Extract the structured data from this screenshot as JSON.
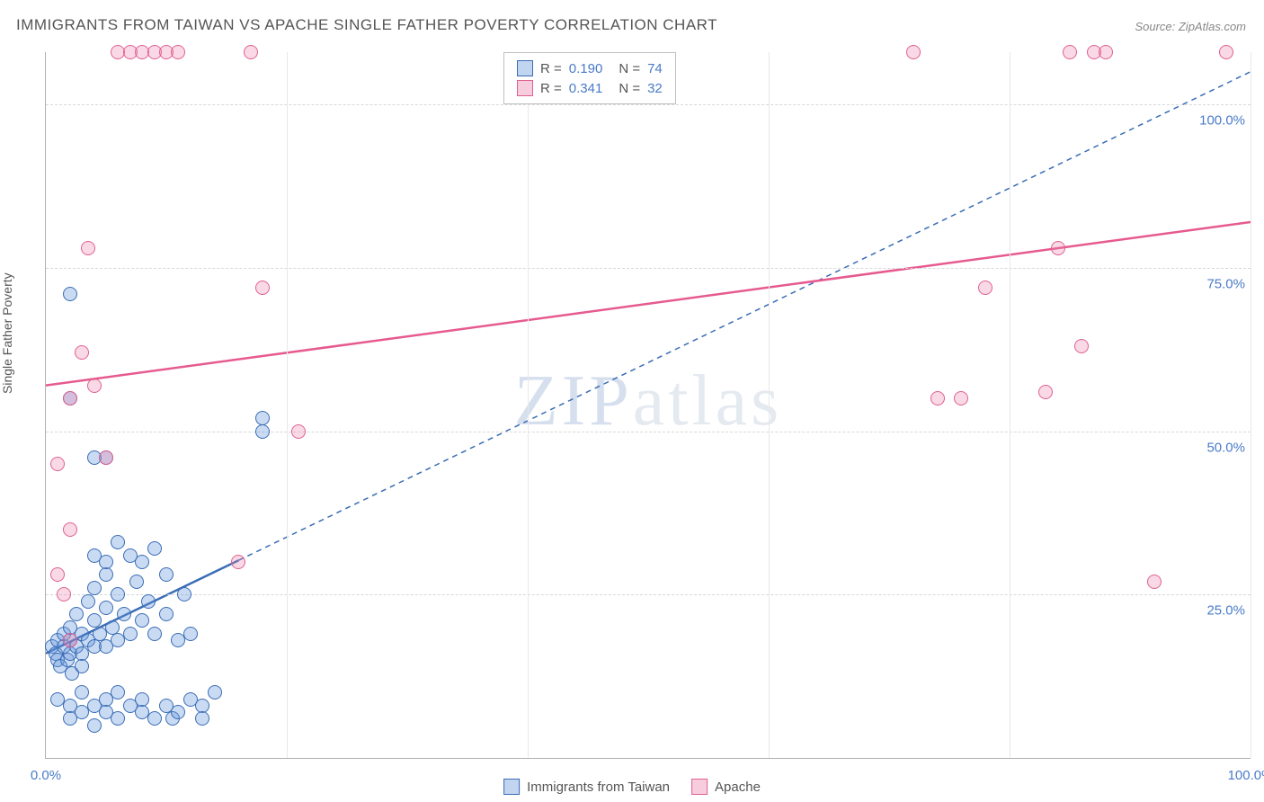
{
  "title": "IMMIGRANTS FROM TAIWAN VS APACHE SINGLE FATHER POVERTY CORRELATION CHART",
  "source": "Source: ZipAtlas.com",
  "y_axis_label": "Single Father Poverty",
  "watermark_bold": "ZIP",
  "watermark_light": "atlas",
  "chart": {
    "type": "scatter",
    "xlim": [
      0,
      100
    ],
    "ylim": [
      0,
      108
    ],
    "x_ticks": [
      0,
      100
    ],
    "x_tick_labels": [
      "0.0%",
      "100.0%"
    ],
    "x_grid": [
      20,
      40,
      60,
      80,
      100
    ],
    "y_ticks": [
      25,
      50,
      75,
      100
    ],
    "y_tick_labels": [
      "25.0%",
      "50.0%",
      "75.0%",
      "100.0%"
    ],
    "background_color": "#ffffff",
    "grid_color": "#d8d8d8",
    "marker_size": 14,
    "series": [
      {
        "name": "Immigrants from Taiwan",
        "color_fill": "rgba(100,150,220,0.35)",
        "color_stroke": "#3a6db5",
        "class": "blue",
        "R": "0.190",
        "N": "74",
        "trend": {
          "x1": 0,
          "y1": 16,
          "x2": 100,
          "y2": 105,
          "solid_until_x": 16,
          "stroke": "#3a6db5",
          "dash": "6,5"
        },
        "points": [
          [
            0.5,
            17
          ],
          [
            0.8,
            16
          ],
          [
            1,
            15
          ],
          [
            1,
            18
          ],
          [
            1.2,
            14
          ],
          [
            1.5,
            17
          ],
          [
            1.5,
            19
          ],
          [
            1.8,
            15
          ],
          [
            2,
            18
          ],
          [
            2,
            16
          ],
          [
            2,
            20
          ],
          [
            2.2,
            13
          ],
          [
            2.5,
            17
          ],
          [
            2.5,
            22
          ],
          [
            3,
            16
          ],
          [
            3,
            19
          ],
          [
            3,
            14
          ],
          [
            3.5,
            18
          ],
          [
            3.5,
            24
          ],
          [
            4,
            17
          ],
          [
            4,
            21
          ],
          [
            4,
            26
          ],
          [
            4.5,
            19
          ],
          [
            5,
            17
          ],
          [
            5,
            23
          ],
          [
            5,
            28
          ],
          [
            5.5,
            20
          ],
          [
            6,
            18
          ],
          [
            6,
            25
          ],
          [
            6.5,
            22
          ],
          [
            7,
            19
          ],
          [
            7,
            31
          ],
          [
            7.5,
            27
          ],
          [
            8,
            21
          ],
          [
            8,
            30
          ],
          [
            8.5,
            24
          ],
          [
            9,
            19
          ],
          [
            9,
            32
          ],
          [
            10,
            22
          ],
          [
            10,
            28
          ],
          [
            10.5,
            6
          ],
          [
            11,
            18
          ],
          [
            11,
            7
          ],
          [
            11.5,
            25
          ],
          [
            12,
            9
          ],
          [
            12,
            19
          ],
          [
            13,
            8
          ],
          [
            13,
            6
          ],
          [
            14,
            10
          ],
          [
            1,
            9
          ],
          [
            2,
            8
          ],
          [
            2,
            6
          ],
          [
            3,
            7
          ],
          [
            3,
            10
          ],
          [
            4,
            8
          ],
          [
            4,
            5
          ],
          [
            5,
            9
          ],
          [
            5,
            7
          ],
          [
            6,
            6
          ],
          [
            6,
            10
          ],
          [
            7,
            8
          ],
          [
            8,
            7
          ],
          [
            8,
            9
          ],
          [
            9,
            6
          ],
          [
            10,
            8
          ],
          [
            2,
            71
          ],
          [
            4,
            46
          ],
          [
            5,
            46
          ],
          [
            2,
            55
          ],
          [
            4,
            31
          ],
          [
            5,
            30
          ],
          [
            6,
            33
          ],
          [
            18,
            52
          ],
          [
            18,
            50
          ]
        ]
      },
      {
        "name": "Apache",
        "color_fill": "rgba(235,130,170,0.3)",
        "color_stroke": "#e06090",
        "class": "pink",
        "R": "0.341",
        "N": "32",
        "trend": {
          "x1": 0,
          "y1": 57,
          "x2": 100,
          "y2": 82,
          "stroke": "#e65a8f"
        },
        "points": [
          [
            1,
            28
          ],
          [
            1.5,
            25
          ],
          [
            2,
            35
          ],
          [
            2,
            55
          ],
          [
            3,
            62
          ],
          [
            3.5,
            78
          ],
          [
            4,
            57
          ],
          [
            5,
            46
          ],
          [
            6,
            108
          ],
          [
            7,
            108
          ],
          [
            8,
            108
          ],
          [
            9,
            108
          ],
          [
            10,
            108
          ],
          [
            11,
            108
          ],
          [
            17,
            108
          ],
          [
            18,
            72
          ],
          [
            21,
            50
          ],
          [
            16,
            30
          ],
          [
            72,
            108
          ],
          [
            74,
            55
          ],
          [
            76,
            55
          ],
          [
            78,
            72
          ],
          [
            83,
            56
          ],
          [
            84,
            78
          ],
          [
            85,
            108
          ],
          [
            86,
            63
          ],
          [
            87,
            108
          ],
          [
            88,
            108
          ],
          [
            92,
            27
          ],
          [
            98,
            108
          ],
          [
            1,
            45
          ],
          [
            2,
            18
          ]
        ]
      }
    ]
  },
  "legend_bottom": [
    {
      "label": "Immigrants from Taiwan",
      "class": "blue"
    },
    {
      "label": "Apache",
      "class": "pink"
    }
  ]
}
